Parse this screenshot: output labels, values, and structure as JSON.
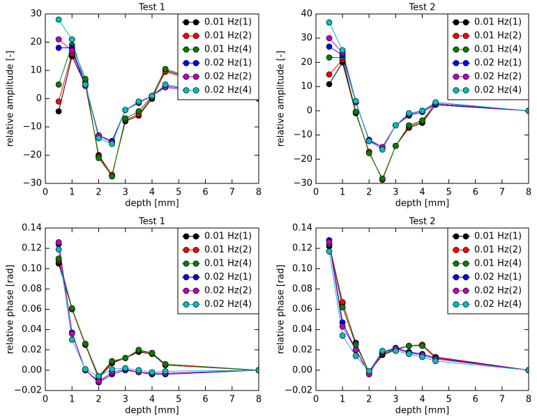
{
  "chart_data": [
    {
      "type": "line",
      "title": "Test 1",
      "x_label": "depth [mm]",
      "y_label": "relative amplitude [-]",
      "x": [
        0.5,
        1,
        1.5,
        2,
        2.5,
        3,
        3.5,
        4,
        4.5,
        8
      ],
      "xlim": [
        0,
        8
      ],
      "xticks": [
        0,
        1,
        2,
        3,
        4,
        5,
        6,
        7,
        8
      ],
      "ylim": [
        -30,
        30
      ],
      "yticks": [
        {
          "value": -30,
          "label": "−30"
        },
        {
          "value": -20,
          "label": "−20"
        },
        {
          "value": -10,
          "label": "−10"
        },
        0,
        10,
        20,
        30
      ],
      "legend": "upper right",
      "series": [
        {
          "name": "0.01 Hz(1)",
          "color": "#000000",
          "values": [
            -4.5,
            15,
            5,
            -20,
            -27,
            -8,
            -6,
            0,
            10,
            0
          ]
        },
        {
          "name": "0.01 Hz(2)",
          "color": "#ff0000",
          "values": [
            -1,
            16,
            6,
            -20.5,
            -27,
            -7.5,
            -5.5,
            0.5,
            9.5,
            0
          ]
        },
        {
          "name": "0.01 Hz(4)",
          "color": "#008000",
          "values": [
            5,
            19,
            7,
            -21,
            -27.5,
            -7,
            -4.5,
            1,
            10.5,
            0
          ]
        },
        {
          "name": "0.02 Hz(1)",
          "color": "#0000ff",
          "values": [
            18,
            18,
            5,
            -13,
            -15,
            -4,
            -1.5,
            1,
            4.5,
            0
          ]
        },
        {
          "name": "0.02 Hz(2)",
          "color": "#bf00bf",
          "values": [
            21,
            17,
            4.5,
            -13,
            -15.5,
            -4,
            -1.5,
            1,
            4,
            0
          ]
        },
        {
          "name": "0.02 Hz(4)",
          "color": "#00bfbf",
          "values": [
            28,
            21,
            5,
            -14,
            -16,
            -4,
            -1,
            1,
            5,
            0
          ]
        }
      ]
    },
    {
      "type": "line",
      "title": "Test 2",
      "x_label": "depth [mm]",
      "y_label": "relative amplitude [-]",
      "x": [
        0.5,
        1,
        1.5,
        2,
        2.5,
        3,
        3.5,
        4,
        4.5,
        8
      ],
      "xlim": [
        0,
        8
      ],
      "xticks": [
        0,
        1,
        2,
        3,
        4,
        5,
        6,
        7,
        8
      ],
      "ylim": [
        -30,
        40
      ],
      "yticks": [
        {
          "value": -30,
          "label": "−30"
        },
        {
          "value": -20,
          "label": "−20"
        },
        {
          "value": -10,
          "label": "−10"
        },
        0,
        10,
        20,
        30,
        40
      ],
      "legend": "upper right",
      "series": [
        {
          "name": "0.01 Hz(1)",
          "color": "#000000",
          "values": [
            11,
            20,
            -1,
            -17,
            -28.5,
            -14.5,
            -7,
            -5,
            2.5,
            0
          ]
        },
        {
          "name": "0.01 Hz(2)",
          "color": "#ff0000",
          "values": [
            15,
            21,
            -0.5,
            -17,
            -28.5,
            -14.5,
            -6.5,
            -4.5,
            2.5,
            0
          ]
        },
        {
          "name": "0.01 Hz(4)",
          "color": "#008000",
          "values": [
            22,
            22,
            -0.5,
            -17.5,
            -28,
            -14.5,
            -6,
            -4,
            3,
            0
          ]
        },
        {
          "name": "0.02 Hz(1)",
          "color": "#0000ff",
          "values": [
            26.5,
            23,
            3.5,
            -12,
            -15,
            -6,
            -2,
            -0.5,
            2.5,
            0
          ]
        },
        {
          "name": "0.02 Hz(2)",
          "color": "#bf00bf",
          "values": [
            30,
            24,
            3.5,
            -12.5,
            -15,
            -6,
            -1.5,
            0,
            3,
            0
          ]
        },
        {
          "name": "0.02 Hz(4)",
          "color": "#00bfbf",
          "values": [
            36.5,
            25,
            4,
            -12.5,
            -16,
            -6,
            -1,
            0,
            3.5,
            0
          ]
        }
      ]
    },
    {
      "type": "line",
      "title": "Test 1",
      "x_label": "depth [mm]",
      "y_label": "relative phase [rad]",
      "x": [
        0.5,
        1,
        1.5,
        2,
        2.5,
        3,
        3.5,
        4,
        4.5,
        8
      ],
      "xlim": [
        0,
        8
      ],
      "xticks": [
        0,
        1,
        2,
        3,
        4,
        5,
        6,
        7,
        8
      ],
      "ylim": [
        -0.02,
        0.14
      ],
      "yticks": [
        {
          "value": -0.02,
          "label": "−0.02"
        },
        {
          "value": 0,
          "label": "0.00"
        },
        0.02,
        0.04,
        0.06,
        0.08,
        {
          "value": 0.1,
          "label": "0.10"
        },
        0.12,
        0.14
      ],
      "legend": "upper right",
      "series": [
        {
          "name": "0.01 Hz(1)",
          "color": "#000000",
          "values": [
            0.105,
            0.06,
            0.025,
            -0.008,
            0.007,
            0.012,
            0.018,
            0.016,
            0.005,
            0
          ]
        },
        {
          "name": "0.01 Hz(2)",
          "color": "#ff0000",
          "values": [
            0.108,
            0.06,
            0.025,
            -0.007,
            0.008,
            0.012,
            0.019,
            0.017,
            0.005,
            0
          ]
        },
        {
          "name": "0.01 Hz(4)",
          "color": "#008000",
          "values": [
            0.11,
            0.061,
            0.026,
            -0.006,
            0.009,
            0.012,
            0.02,
            0.017,
            0.006,
            0
          ]
        },
        {
          "name": "0.02 Hz(1)",
          "color": "#0000ff",
          "values": [
            0.124,
            0.037,
            0,
            -0.012,
            -0.004,
            0,
            -0.002,
            -0.004,
            -0.004,
            0
          ]
        },
        {
          "name": "0.02 Hz(2)",
          "color": "#bf00bf",
          "values": [
            0.126,
            0.036,
            0,
            -0.011,
            -0.002,
            0.001,
            -0.002,
            -0.003,
            -0.003,
            0
          ]
        },
        {
          "name": "0.02 Hz(4)",
          "color": "#00bfbf",
          "values": [
            0.119,
            0.03,
            0.001,
            -0.006,
            0.001,
            0.002,
            0,
            -0.002,
            -0.001,
            0
          ]
        }
      ]
    },
    {
      "type": "line",
      "title": "Test 2",
      "x_label": "depth [mm]",
      "y_label": "relative phase [rad]",
      "x": [
        0.5,
        1,
        1.5,
        2,
        2.5,
        3,
        3.5,
        4,
        4.5,
        8
      ],
      "xlim": [
        0,
        8
      ],
      "xticks": [
        0,
        1,
        2,
        3,
        4,
        5,
        6,
        7,
        8
      ],
      "ylim": [
        -0.02,
        0.14
      ],
      "yticks": [
        {
          "value": -0.02,
          "label": "−0.02"
        },
        {
          "value": 0,
          "label": "0.00"
        },
        0.02,
        0.04,
        0.06,
        0.08,
        {
          "value": 0.1,
          "label": "0.10"
        },
        0.12,
        0.14
      ],
      "legend": "upper right",
      "series": [
        {
          "name": "0.01 Hz(1)",
          "color": "#000000",
          "values": [
            0.122,
            0.066,
            0.027,
            -0.002,
            0.015,
            0.02,
            0.024,
            0.025,
            0.013,
            0
          ]
        },
        {
          "name": "0.01 Hz(2)",
          "color": "#ff0000",
          "values": [
            0.124,
            0.067,
            0.026,
            -0.002,
            0.016,
            0.021,
            0.024,
            0.025,
            0.013,
            0
          ]
        },
        {
          "name": "0.01 Hz(4)",
          "color": "#008000",
          "values": [
            0.124,
            0.062,
            0.025,
            -0.002,
            0.017,
            0.02,
            0.024,
            0.024,
            0.012,
            0
          ]
        },
        {
          "name": "0.02 Hz(1)",
          "color": "#0000ff",
          "values": [
            0.128,
            0.047,
            0.02,
            -0.003,
            0.018,
            0.022,
            0.018,
            0.016,
            0.012,
            0
          ]
        },
        {
          "name": "0.02 Hz(2)",
          "color": "#bf00bf",
          "values": [
            0.126,
            0.043,
            0.02,
            -0.004,
            0.018,
            0.021,
            0.017,
            0.015,
            0.011,
            0
          ]
        },
        {
          "name": "0.02 Hz(4)",
          "color": "#00bfbf",
          "values": [
            0.117,
            0.034,
            0.014,
            -0.001,
            0.019,
            0.019,
            0.016,
            0.013,
            0.009,
            0
          ]
        }
      ]
    }
  ]
}
